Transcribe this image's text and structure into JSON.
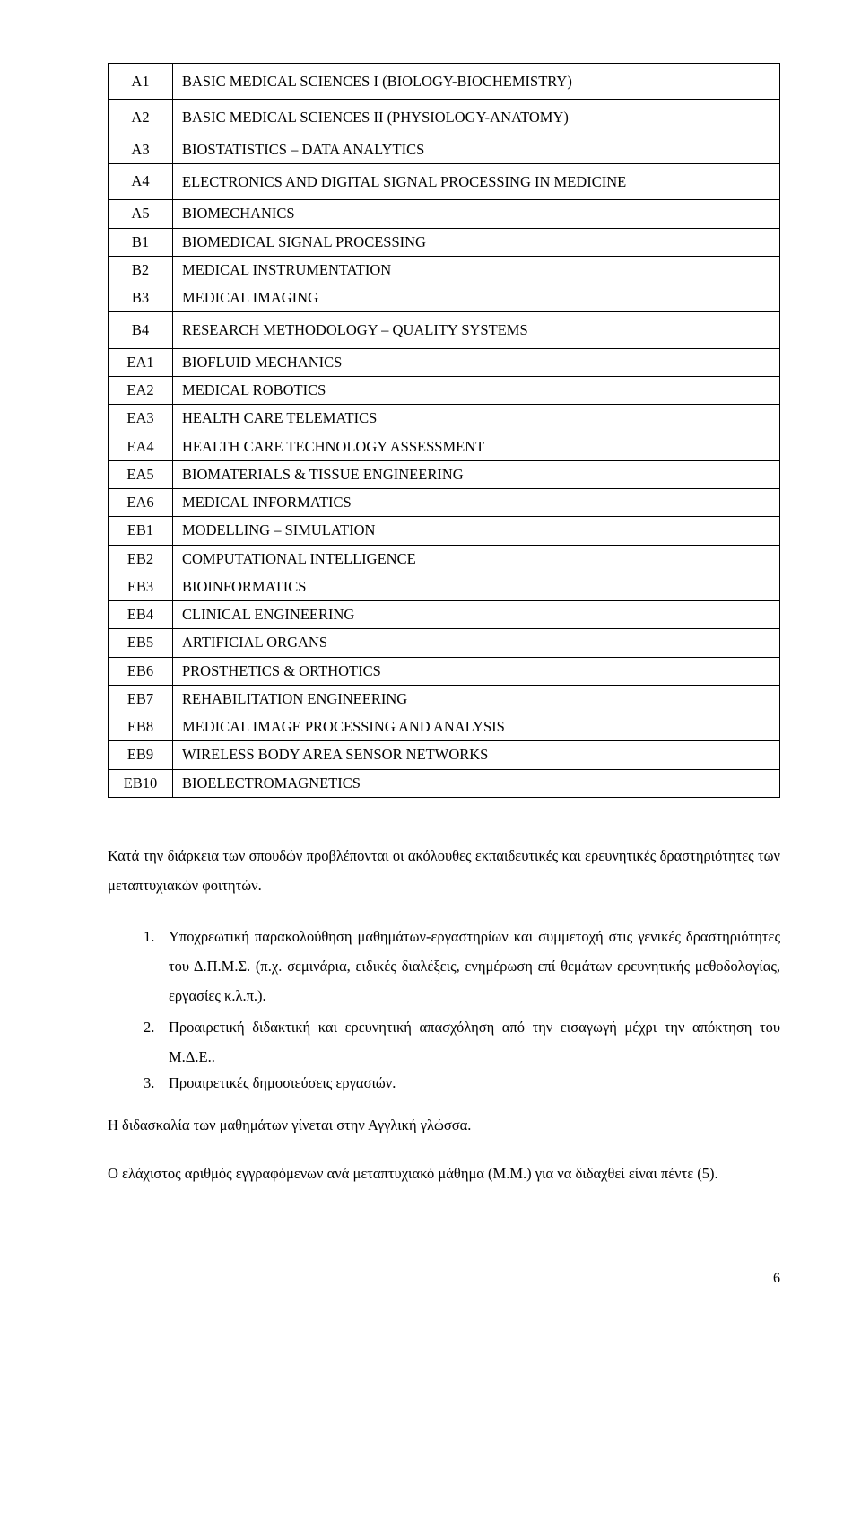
{
  "table": {
    "rows": [
      {
        "code": "A1",
        "value": "BASIC MEDICAL SCIENCES I (BIOLOGY-BIOCHEMISTRY)",
        "multiline": true
      },
      {
        "code": "A2",
        "value": "BASIC MEDICAL SCIENCES II (PHYSIOLOGY-ANATOMY)",
        "multiline": true
      },
      {
        "code": "A3",
        "value": "BIOSTATISTICS – DATA ANALYTICS"
      },
      {
        "code": "A4",
        "value": "ELECTRONICS AND DIGITAL SIGNAL PROCESSING IN MEDICINE",
        "multiline": true
      },
      {
        "code": "A5",
        "value": "BIOMECHANICS"
      },
      {
        "code": "B1",
        "value": "BIOMEDICAL SIGNAL PROCESSING"
      },
      {
        "code": "B2",
        "value": "MEDICAL INSTRUMENTATION"
      },
      {
        "code": "B3",
        "value": "MEDICAL IMAGING"
      },
      {
        "code": "B4",
        "value": "RESEARCH METHODOLOGY – QUALITY SYSTEMS",
        "multiline": true
      },
      {
        "code": "EA1",
        "value": "BIOFLUID MECHANICS"
      },
      {
        "code": "EA2",
        "value": "MEDICAL ROBOTICS"
      },
      {
        "code": "EA3",
        "value": "HEALTH CARE TELEMATICS"
      },
      {
        "code": "EA4",
        "value": "HEALTH CARE TECHNOLOGY ASSESSMENT"
      },
      {
        "code": "EA5",
        "value": "BIOMATERIALS & TISSUE ENGINEERING"
      },
      {
        "code": "EA6",
        "value": "MEDICAL INFORMATICS"
      },
      {
        "code": "EB1",
        "value": "MODELLING – SIMULATION"
      },
      {
        "code": "EB2",
        "value": "COMPUTATIONAL INTELLIGENCE"
      },
      {
        "code": "EB3",
        "value": "BIOINFORMATICS"
      },
      {
        "code": "EB4",
        "value": "CLINICAL ENGINEERING"
      },
      {
        "code": "EB5",
        "value": "ARTIFICIAL ORGANS"
      },
      {
        "code": "EB6",
        "value": "PROSTHETICS & ORTHOTICS"
      },
      {
        "code": "EB7",
        "value": "REHABILITATION ENGINEERING"
      },
      {
        "code": "EB8",
        "value": "MEDICAL IMAGE PROCESSING AND ANALYSIS"
      },
      {
        "code": "EB9",
        "value": "WIRELESS BODY AREA SENSOR NETWORKS"
      },
      {
        "code": "EB10",
        "value": "BIOELECTROMAGNETICS"
      }
    ]
  },
  "intro_paragraph": "Κατά την διάρκεια των σπουδών προβλέπονται οι ακόλουθες εκπαιδευτικές και ερευνητικές δραστηριότητες των μεταπτυχιακών φοιτητών.",
  "list_items": [
    "Υποχρεωτική παρακολούθηση μαθημάτων-εργαστηρίων και συμμετοχή στις γενικές δραστηριότητες του Δ.Π.Μ.Σ. (π.χ. σεμινάρια, ειδικές διαλέξεις, ενημέρωση επί θεμάτων ερευνητικής μεθοδολογίας, εργασίες κ.λ.π.).",
    "Προαιρετική διδακτική και ερευνητική απασχόληση από την εισαγωγή μέχρι την απόκτηση του Μ.Δ.Ε..",
    "Προαιρετικές δημοσιεύσεις εργασιών."
  ],
  "para_teaching": "Η διδασκαλία των μαθημάτων γίνεται στην Αγγλική γλώσσα.",
  "para_minimum": "Ο ελάχιστος αριθμός εγγραφόμενων ανά μεταπτυχιακό μάθημα (Μ.Μ.) για να διδαχθεί είναι πέντε (5).",
  "page_number": "6"
}
